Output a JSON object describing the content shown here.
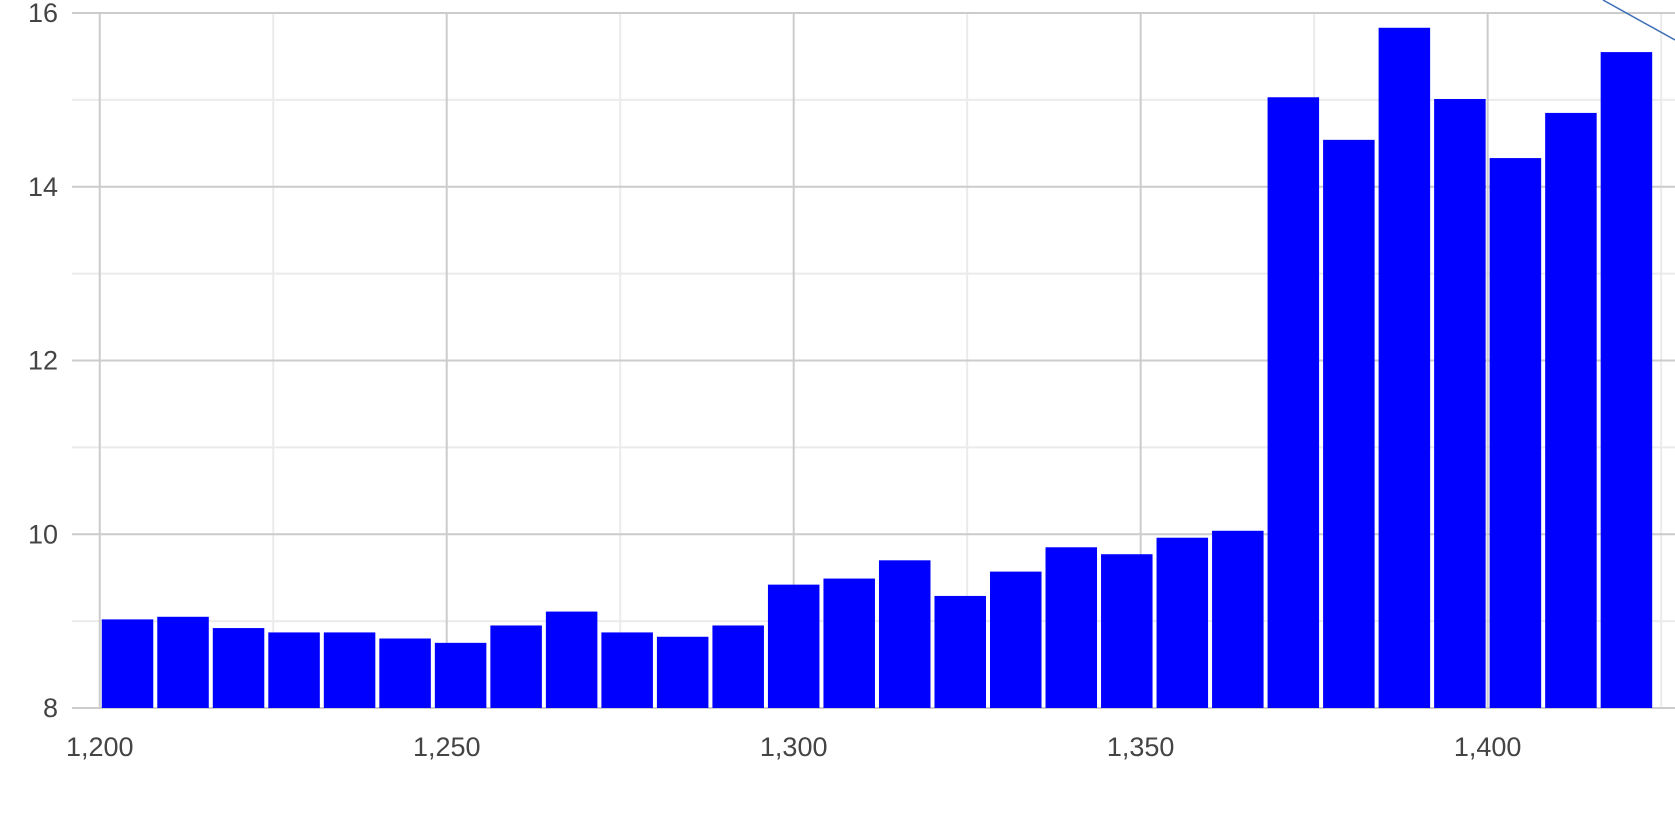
{
  "chart_data": {
    "type": "bar",
    "title": "",
    "xlabel": "",
    "ylabel": "",
    "bar_color": "#0000ff",
    "grid": true,
    "legend": "none",
    "xlim": [
      1196,
      1427
    ],
    "ylim": [
      8,
      16
    ],
    "x_ticks": [
      1200,
      1250,
      1300,
      1350,
      1400
    ],
    "x_tick_labels": [
      "1,200",
      "1,250",
      "1,300",
      "1,350",
      "1,400"
    ],
    "x_minor_ticks": [
      1225,
      1275,
      1325,
      1375,
      1425
    ],
    "y_ticks": [
      8,
      10,
      12,
      14,
      16
    ],
    "y_tick_labels": [
      "8",
      "10",
      "12",
      "14",
      "16"
    ],
    "y_minor_ticks": [
      9,
      11,
      13,
      15
    ],
    "bin_width": 8,
    "x": [
      1200,
      1208,
      1216,
      1224,
      1232,
      1240,
      1248,
      1256,
      1264,
      1272,
      1280,
      1288,
      1296,
      1304,
      1312,
      1320,
      1328,
      1336,
      1344,
      1352,
      1360,
      1368,
      1376,
      1384,
      1392,
      1400,
      1408,
      1416
    ],
    "values": [
      9.02,
      9.05,
      8.92,
      8.87,
      8.87,
      8.8,
      8.75,
      8.95,
      9.11,
      8.87,
      8.82,
      8.95,
      9.42,
      9.49,
      9.7,
      9.29,
      9.57,
      9.85,
      9.77,
      9.96,
      10.04,
      15.03,
      14.54,
      15.83,
      15.01,
      14.33,
      14.85,
      15.55
    ]
  },
  "annotation": {
    "line_color": "#3f6fb5"
  }
}
